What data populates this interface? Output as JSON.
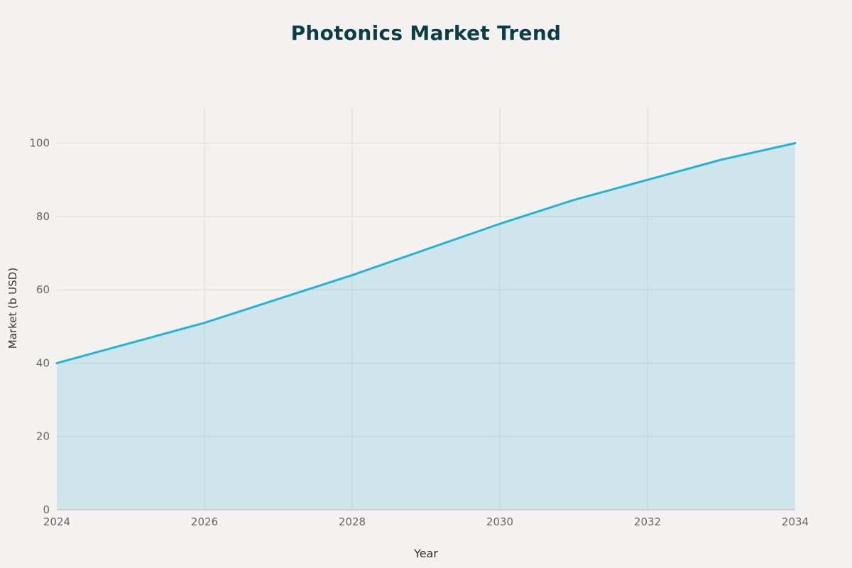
{
  "chart": {
    "title": "Photonics Market Trend",
    "xlabel": "Year",
    "ylabel": "Market (b USD)"
  },
  "chart_data": {
    "type": "area",
    "title": "Photonics Market Trend",
    "xlabel": "Year",
    "ylabel": "Market (b USD)",
    "x": [
      2024,
      2025,
      2026,
      2027,
      2028,
      2029,
      2030,
      2031,
      2032,
      2033,
      2034
    ],
    "values": [
      40,
      45.5,
      51,
      57.5,
      64,
      71,
      78,
      84.5,
      90,
      95.5,
      100
    ],
    "xlim": [
      2024,
      2034
    ],
    "ylim": [
      0,
      110
    ],
    "x_ticks": [
      2024,
      2026,
      2028,
      2030,
      2032,
      2034
    ],
    "y_ticks": [
      0,
      20,
      40,
      60,
      80,
      100
    ],
    "grid": true,
    "legend": false,
    "colors": {
      "line": "#24b3d6",
      "fill": "#24b3d6",
      "fill_opacity": 0.18,
      "title": "#0d3c46",
      "tick": "#666666",
      "grid": "#dedbdb",
      "axis": "#c9c6c6",
      "background": "#f4f1f1"
    }
  }
}
